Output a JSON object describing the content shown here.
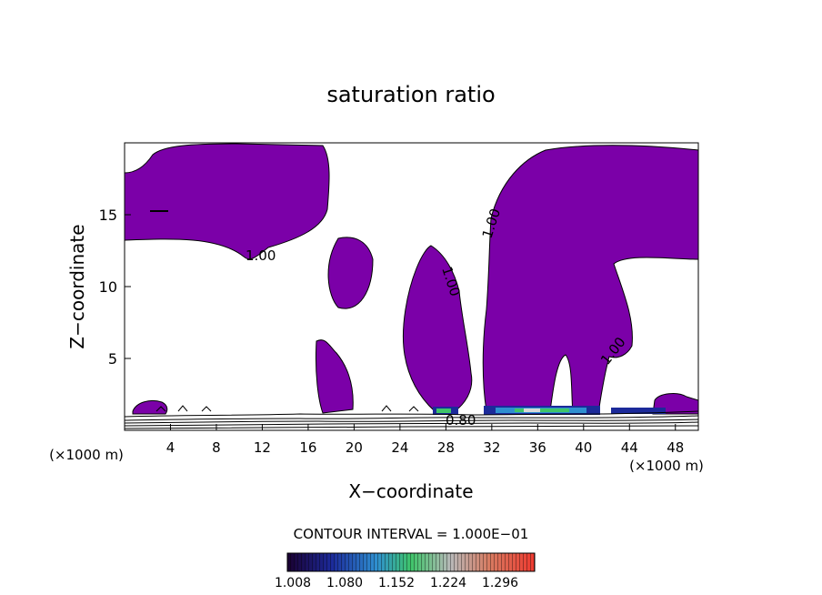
{
  "chart_data": {
    "type": "contour",
    "title": "saturation ratio",
    "xlabel": "X−coordinate",
    "ylabel": "Z−coordinate",
    "x_unit_left": "(×1000 m)",
    "x_unit_right": "(×1000 m)",
    "xlim": [
      0,
      50
    ],
    "ylim": [
      0,
      20
    ],
    "xticks": [
      4,
      8,
      12,
      16,
      20,
      24,
      28,
      32,
      36,
      40,
      44,
      48
    ],
    "yticks": [
      5,
      10,
      15
    ],
    "contour_labels": [
      {
        "text": "1.00",
        "x": 12.0,
        "y": 12.0
      },
      {
        "text": "1.00",
        "x": 28.8,
        "y": 10.2
      },
      {
        "text": "1.00",
        "x": 32.6,
        "y": 14.2
      },
      {
        "text": "1.00",
        "x": 42.0,
        "y": 5.4
      },
      {
        "text": "0.80",
        "x": 29.4,
        "y": 0.6
      }
    ],
    "contour_interval_text": "CONTOUR INTERVAL = 1.000E−01",
    "colorbar": {
      "tick_labels": [
        "1.008",
        "1.080",
        "1.152",
        "1.224",
        "1.296"
      ],
      "range": [
        1.008,
        1.296
      ]
    },
    "colors": {
      "supersaturated_fill": "#7b00a8",
      "contour_line": "#000000"
    }
  }
}
